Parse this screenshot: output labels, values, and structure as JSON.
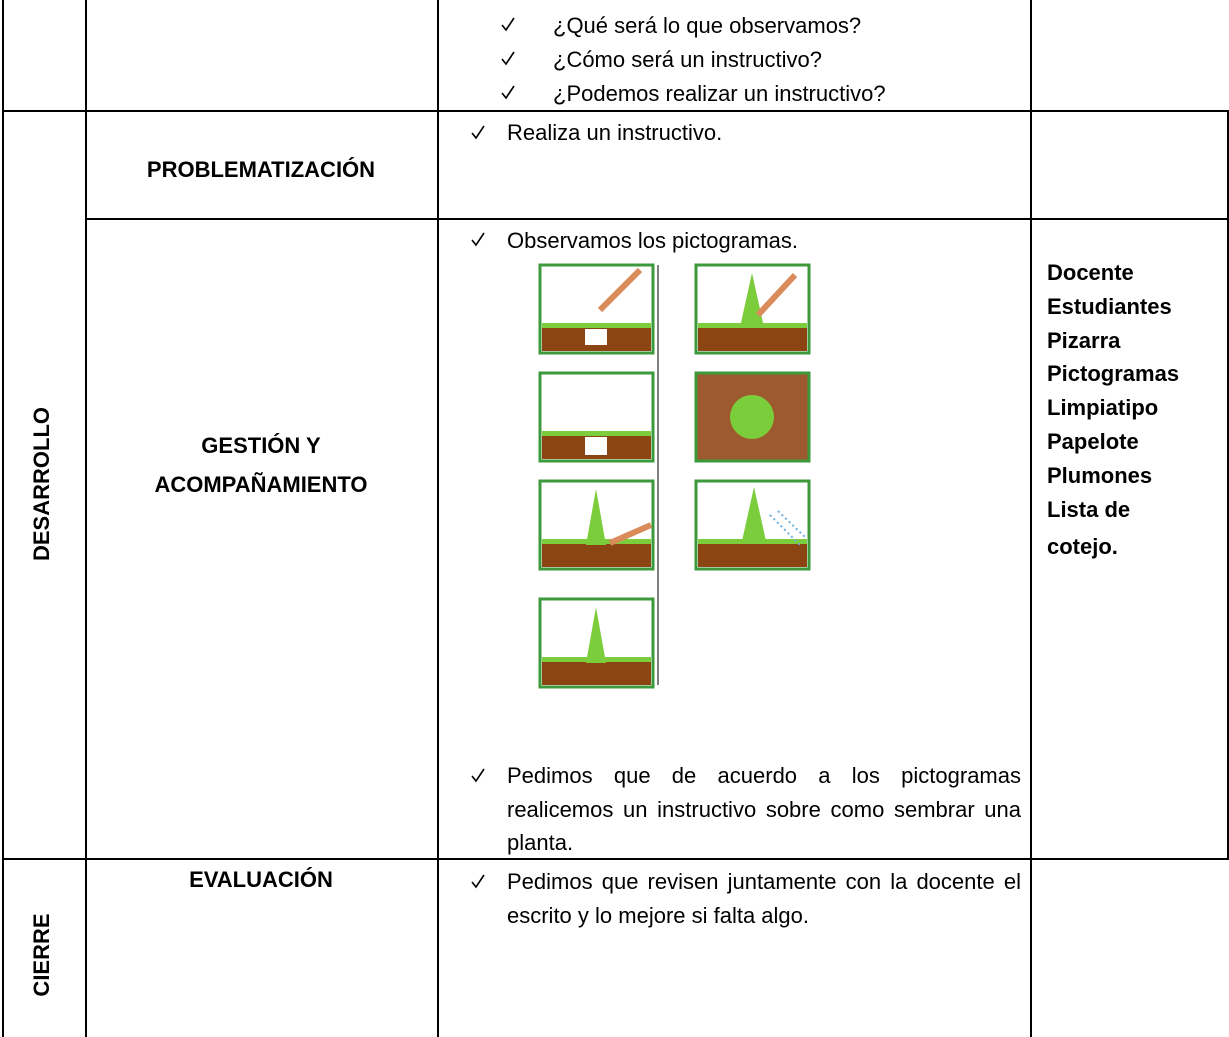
{
  "table": {
    "phases": [
      "DESARROLLO",
      "CIERRE"
    ],
    "rows": [
      {
        "bullets": [
          "¿Qué será lo que observamos?",
          "¿Cómo será  un instructivo?",
          "¿Podemos realizar un instructivo?"
        ]
      },
      {
        "stage": [
          "PROBLEMATIZACIÓN"
        ],
        "bullets": [
          "Realiza un instructivo."
        ]
      },
      {
        "stage": [
          "GESTIÓN Y",
          "ACOMPAÑAMIENTO"
        ],
        "bullets": [
          "Observamos los pictogramas.",
          "Pedimos que de acuerdo a los pictogramas realicemos un instructivo sobre como sembrar una planta."
        ],
        "resources": [
          "Docente",
          "Estudiantes",
          "Pizarra",
          "Pictogramas",
          "Limpiatipo",
          "Papelote",
          "Plumones",
          "Lista de",
          "cotejo."
        ]
      },
      {
        "stage": [
          "EVALUACIÓN"
        ],
        "bullets": [
          "Pedimos que revisen juntamente con la docente el escrito y lo mejore si falta algo."
        ]
      }
    ]
  }
}
